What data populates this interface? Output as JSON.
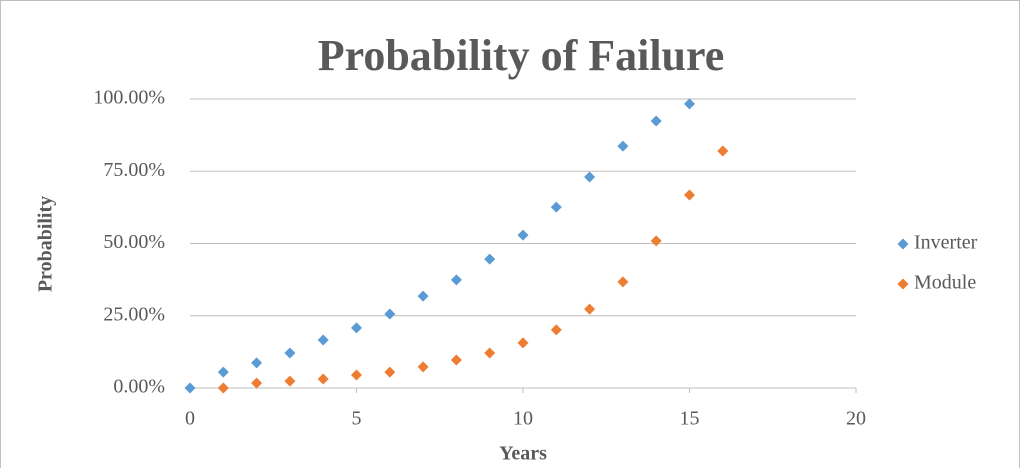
{
  "chart_data": {
    "type": "scatter",
    "title": "Probability of Failure",
    "x_label": "Years",
    "y_label": "Probability",
    "xlim": [
      0,
      20
    ],
    "xticks": [
      0,
      5,
      10,
      15,
      20
    ],
    "ylim": [
      0,
      100
    ],
    "yticks": [
      {
        "value": 0,
        "label": "0.00%"
      },
      {
        "value": 25,
        "label": "25.00%"
      },
      {
        "value": 50,
        "label": "50.00%"
      },
      {
        "value": 75,
        "label": "75.00%"
      },
      {
        "value": 100,
        "label": "100.00%"
      }
    ],
    "grid": true,
    "legend": "right",
    "series": [
      {
        "name": "Inverter",
        "color": "#5b9bd5",
        "x": [
          0,
          1,
          2,
          3,
          4,
          5,
          6,
          7,
          8,
          9,
          10,
          11,
          12,
          13,
          14,
          15
        ],
        "values": [
          0,
          5.5,
          8.7,
          12.1,
          16.6,
          20.8,
          25.6,
          31.8,
          37.4,
          44.6,
          52.9,
          62.6,
          73.0,
          83.7,
          92.4,
          98.3
        ]
      },
      {
        "name": "Module",
        "color": "#ed7d31",
        "x": [
          1,
          2,
          3,
          4,
          5,
          6,
          7,
          8,
          9,
          10,
          11,
          12,
          13,
          14,
          15,
          16
        ],
        "values": [
          0,
          1.7,
          2.4,
          3.1,
          4.5,
          5.5,
          7.3,
          9.7,
          12.1,
          15.6,
          20.1,
          27.3,
          36.7,
          50.9,
          66.8,
          82.0
        ]
      }
    ]
  }
}
